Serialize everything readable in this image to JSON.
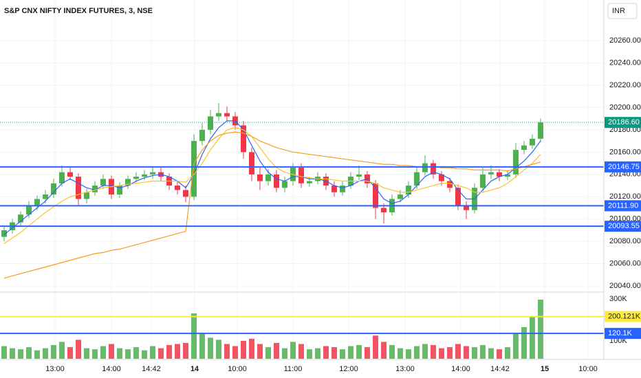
{
  "chart_data": {
    "type": "candlestick",
    "title": "S&P CNX NIFTY INDEX FUTURES, 3, NSE",
    "currency": "INR",
    "up_color": "#4caf50",
    "down_color": "#f23645",
    "xlim": [
      -0.5,
      72.67
    ],
    "xticks": [
      {
        "value": 6.17,
        "label": "13:00"
      },
      {
        "value": 13.0,
        "label": "14:00"
      },
      {
        "value": 17.83,
        "label": "14:42"
      },
      {
        "value": 23.08,
        "label": "14"
      },
      {
        "value": 28.25,
        "label": "10:00"
      },
      {
        "value": 35.0,
        "label": "11:00"
      },
      {
        "value": 41.75,
        "label": "12:00"
      },
      {
        "value": 48.58,
        "label": "13:00"
      },
      {
        "value": 55.33,
        "label": "14:00"
      },
      {
        "value": 60.08,
        "label": "14:42"
      },
      {
        "value": 65.5,
        "label": "15"
      },
      {
        "value": 70.75,
        "label": "10:00"
      }
    ],
    "ylim": [
      20034.5,
      20296.4
    ],
    "yticks": [
      {
        "value": 20040,
        "label": "20040.00"
      },
      {
        "value": 20060,
        "label": "20060.00"
      },
      {
        "value": 20080,
        "label": "20080.00"
      },
      {
        "value": 20100,
        "label": "20100.00"
      },
      {
        "value": 20120,
        "label": "20120.00"
      },
      {
        "value": 20140,
        "label": "20140.00"
      },
      {
        "value": 20160,
        "label": "20160.00"
      },
      {
        "value": 20180,
        "label": "20180.00"
      },
      {
        "value": 20200,
        "label": "20200.00"
      },
      {
        "value": 20220,
        "label": "20220.00"
      },
      {
        "value": 20240,
        "label": "20240.00"
      },
      {
        "value": 20260,
        "label": "20260.00"
      }
    ],
    "vylim": [
      0,
      316000
    ],
    "vyticks": [
      {
        "value": 100000,
        "label": "100K"
      },
      {
        "value": 300000,
        "label": "300K"
      }
    ],
    "grid": true,
    "candles": [
      [
        20084,
        20093,
        20080,
        20090
      ],
      [
        20090,
        20100,
        20087,
        20097
      ],
      [
        20097,
        20107,
        20094,
        20104
      ],
      [
        20104,
        20116,
        20101,
        20112
      ],
      [
        20112,
        20121,
        20108,
        20118
      ],
      [
        20118,
        20126,
        20114,
        20122
      ],
      [
        20122,
        20136,
        20119,
        20132
      ],
      [
        20132,
        20148,
        20129,
        20142
      ],
      [
        20142,
        20146,
        20135,
        20138
      ],
      [
        20138,
        20141,
        20112,
        20118
      ],
      [
        20118,
        20127,
        20114,
        20124
      ],
      [
        20124,
        20134,
        20121,
        20130
      ],
      [
        20130,
        20140,
        20127,
        20136
      ],
      [
        20136,
        20139,
        20118,
        20122
      ],
      [
        20122,
        20133,
        20119,
        20130
      ],
      [
        20130,
        20139,
        20127,
        20136
      ],
      [
        20136,
        20142,
        20133,
        20138
      ],
      [
        20138,
        20144,
        20135,
        20140
      ],
      [
        20140,
        20147,
        20136,
        20142
      ],
      [
        20142,
        20146,
        20134,
        20138
      ],
      [
        20138,
        20141,
        20126,
        20130
      ],
      [
        20130,
        20134,
        20122,
        20126
      ],
      [
        20126,
        20130,
        20115,
        20120
      ],
      [
        20120,
        20176,
        20117,
        20170
      ],
      [
        20170,
        20186,
        20166,
        20180
      ],
      [
        20180,
        20198,
        20176,
        20192
      ],
      [
        20192,
        20204,
        20188,
        20195
      ],
      [
        20195,
        20201,
        20188,
        20192
      ],
      [
        20192,
        20196,
        20180,
        20184
      ],
      [
        20184,
        20188,
        20154,
        20160
      ],
      [
        20160,
        20164,
        20134,
        20140
      ],
      [
        20140,
        20146,
        20126,
        20134
      ],
      [
        20134,
        20145,
        20130,
        20140
      ],
      [
        20140,
        20144,
        20124,
        20128
      ],
      [
        20128,
        20138,
        20124,
        20134
      ],
      [
        20134,
        20150,
        20130,
        20146
      ],
      [
        20146,
        20150,
        20128,
        20132
      ],
      [
        20132,
        20138,
        20129,
        20134
      ],
      [
        20134,
        20142,
        20131,
        20138
      ],
      [
        20138,
        20141,
        20126,
        20130
      ],
      [
        20130,
        20134,
        20120,
        20124
      ],
      [
        20124,
        20134,
        20121,
        20130
      ],
      [
        20130,
        20142,
        20127,
        20138
      ],
      [
        20138,
        20148,
        20135,
        20140
      ],
      [
        20140,
        20143,
        20128,
        20132
      ],
      [
        20132,
        20135,
        20100,
        20110
      ],
      [
        20110,
        20114,
        20096,
        20106
      ],
      [
        20106,
        20122,
        20103,
        20118
      ],
      [
        20118,
        20126,
        20115,
        20122
      ],
      [
        20122,
        20134,
        20119,
        20130
      ],
      [
        20130,
        20146,
        20127,
        20142
      ],
      [
        20142,
        20157,
        20139,
        20150
      ],
      [
        20150,
        20153,
        20136,
        20140
      ],
      [
        20140,
        20143,
        20130,
        20134
      ],
      [
        20134,
        20137,
        20124,
        20128
      ],
      [
        20128,
        20131,
        20108,
        20112
      ],
      [
        20112,
        20116,
        20100,
        20108
      ],
      [
        20108,
        20132,
        20105,
        20128
      ],
      [
        20128,
        20146,
        20125,
        20140
      ],
      [
        20140,
        20148,
        20136,
        20142
      ],
      [
        20142,
        20145,
        20134,
        20138
      ],
      [
        20138,
        20144,
        20135,
        20140
      ],
      [
        20140,
        20168,
        20137,
        20162
      ],
      [
        20162,
        20170,
        20158,
        20166
      ],
      [
        20166,
        20176,
        20163,
        20172
      ],
      [
        20172,
        20190,
        20169,
        20186.6
      ]
    ],
    "volume": [
      60000,
      50000,
      45000,
      55000,
      40000,
      50000,
      65000,
      80000,
      55000,
      90000,
      50000,
      45000,
      60000,
      70000,
      50000,
      45000,
      55000,
      40000,
      60000,
      50000,
      65000,
      70000,
      75000,
      215000,
      120000,
      100000,
      90000,
      70000,
      60000,
      85000,
      95000,
      70000,
      55000,
      75000,
      50000,
      80000,
      70000,
      45000,
      50000,
      60000,
      55000,
      45000,
      60000,
      65000,
      55000,
      110000,
      80000,
      65000,
      50000,
      45000,
      60000,
      70000,
      65000,
      50000,
      55000,
      70000,
      60000,
      55000,
      65000,
      50000,
      45000,
      55000,
      120000,
      150000,
      200000,
      280000
    ],
    "series": [
      {
        "color": "#2962ff",
        "values": [
          20086,
          20092,
          20098,
          20104,
          20110,
          20116,
          20124,
          20132,
          20136,
          20132,
          20128,
          20126,
          20130,
          20130,
          20128,
          20130,
          20134,
          20137,
          20139,
          20140,
          20138,
          20134,
          20128,
          20140,
          20158,
          20172,
          20182,
          20188,
          20188,
          20180,
          20166,
          20152,
          20142,
          20136,
          20134,
          20138,
          20138,
          20136,
          20136,
          20134,
          20130,
          20128,
          20130,
          20134,
          20136,
          20128,
          20118,
          20114,
          20116,
          20122,
          20130,
          20138,
          20142,
          20140,
          20136,
          20126,
          20118,
          20118,
          20126,
          20134,
          20138,
          20140,
          20146,
          20152,
          20160,
          20170
        ]
      },
      {
        "color": "#fbc02d",
        "values": [
          20078,
          20083,
          20088,
          20094,
          20100,
          20106,
          20111,
          20116,
          20120,
          20122,
          20124,
          20126,
          20128,
          20129,
          20130,
          20131,
          20132,
          20133,
          20134,
          20134,
          20134,
          20134,
          20133,
          20140,
          20150,
          20162,
          20172,
          20180,
          20182,
          20180,
          20174,
          20164,
          20154,
          20146,
          20142,
          20140,
          20138,
          20137,
          20136,
          20136,
          20135,
          20134,
          20134,
          20134,
          20134,
          20132,
          20128,
          20126,
          20124,
          20124,
          20126,
          20128,
          20130,
          20132,
          20132,
          20130,
          20128,
          20124,
          20124,
          20126,
          20128,
          20132,
          20138,
          20144,
          20150,
          20158
        ]
      },
      {
        "color": "#f59d1a",
        "values": [
          20047,
          20049,
          20051,
          20053,
          20055,
          20057,
          20059,
          20061,
          20063,
          20065,
          20067,
          20069,
          20070,
          20072,
          20073,
          20075,
          20077,
          20079,
          20081,
          20083,
          20085,
          20087,
          20089,
          20150,
          20162,
          20170,
          20175,
          20177,
          20178,
          20177,
          20174,
          20170,
          20167,
          20164,
          20162,
          20160,
          20159,
          20158,
          20157,
          20156,
          20155,
          20154,
          20153,
          20152,
          20151,
          20150,
          20149,
          20149,
          20148,
          20148,
          20147,
          20147,
          20147,
          20146,
          20146,
          20145,
          20145,
          20144,
          20144,
          20144,
          20144,
          20143,
          20145,
          20147,
          20149,
          20151
        ]
      }
    ],
    "last_price": {
      "value": 20186.6,
      "label": "20186.60",
      "color": "#089981"
    },
    "price_levels": [
      {
        "value": 20146.75,
        "color": "#2962ff"
      },
      {
        "value": 20111.9,
        "label": "20111.90",
        "color": "#2962ff"
      },
      {
        "value": 20093.55,
        "color": "#2962ff"
      }
    ],
    "volume_levels": [
      {
        "value": 200121,
        "label": "200.121K",
        "color": "#ffeb3b"
      },
      {
        "value": 120100,
        "label": "120.1K",
        "color": "#2962ff"
      }
    ]
  }
}
